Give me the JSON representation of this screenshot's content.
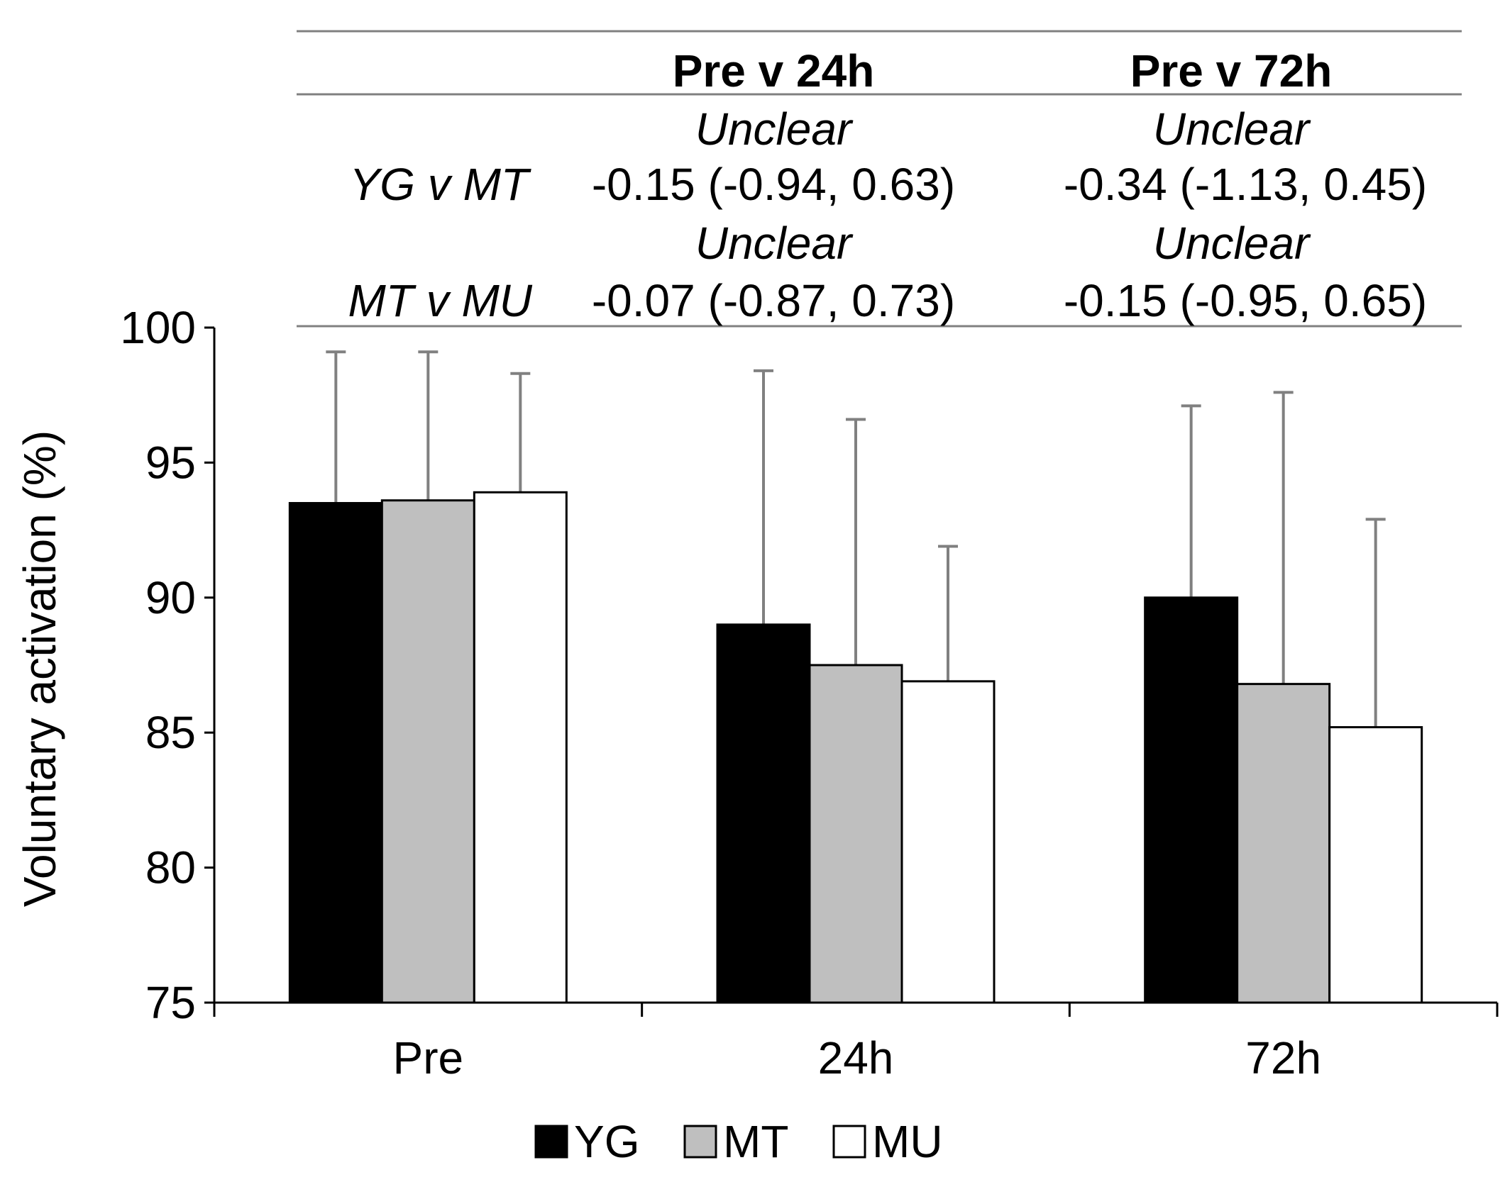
{
  "chart_data": {
    "type": "bar",
    "ylabel": "Voluntary activation (%)",
    "xlabel": "",
    "ylim": [
      75,
      100
    ],
    "yticks": [
      75,
      80,
      85,
      90,
      95,
      100
    ],
    "categories": [
      "Pre",
      "24h",
      "72h"
    ],
    "series": [
      {
        "name": "YG",
        "color": "#000000",
        "values": [
          93.5,
          89.0,
          90.0
        ],
        "error": [
          5.6,
          9.4,
          7.1
        ]
      },
      {
        "name": "MT",
        "color": "#bfbfbf",
        "values": [
          93.6,
          87.5,
          86.8
        ],
        "error": [
          5.5,
          9.1,
          10.8
        ]
      },
      {
        "name": "MU",
        "color": "#ffffff",
        "values": [
          93.9,
          86.9,
          85.2
        ],
        "error": [
          4.4,
          5.0,
          7.7
        ]
      }
    ],
    "legend": {
      "position": "bottom-center",
      "entries": [
        "YG",
        "MT",
        "MU"
      ]
    },
    "comparison_table": {
      "columns": [
        "Pre v 24h",
        "Pre v 72h"
      ],
      "rows": [
        {
          "label": "YG v MT",
          "verdicts": [
            "Unclear",
            "Unclear"
          ],
          "values": [
            "-0.15 (-0.94, 0.63)",
            "-0.34 (-1.13, 0.45)"
          ]
        },
        {
          "label": "MT v MU",
          "verdicts": [
            "Unclear",
            "Unclear"
          ],
          "values": [
            "-0.07 (-0.87, 0.73)",
            "-0.15 (-0.95, 0.65)"
          ]
        }
      ]
    }
  }
}
